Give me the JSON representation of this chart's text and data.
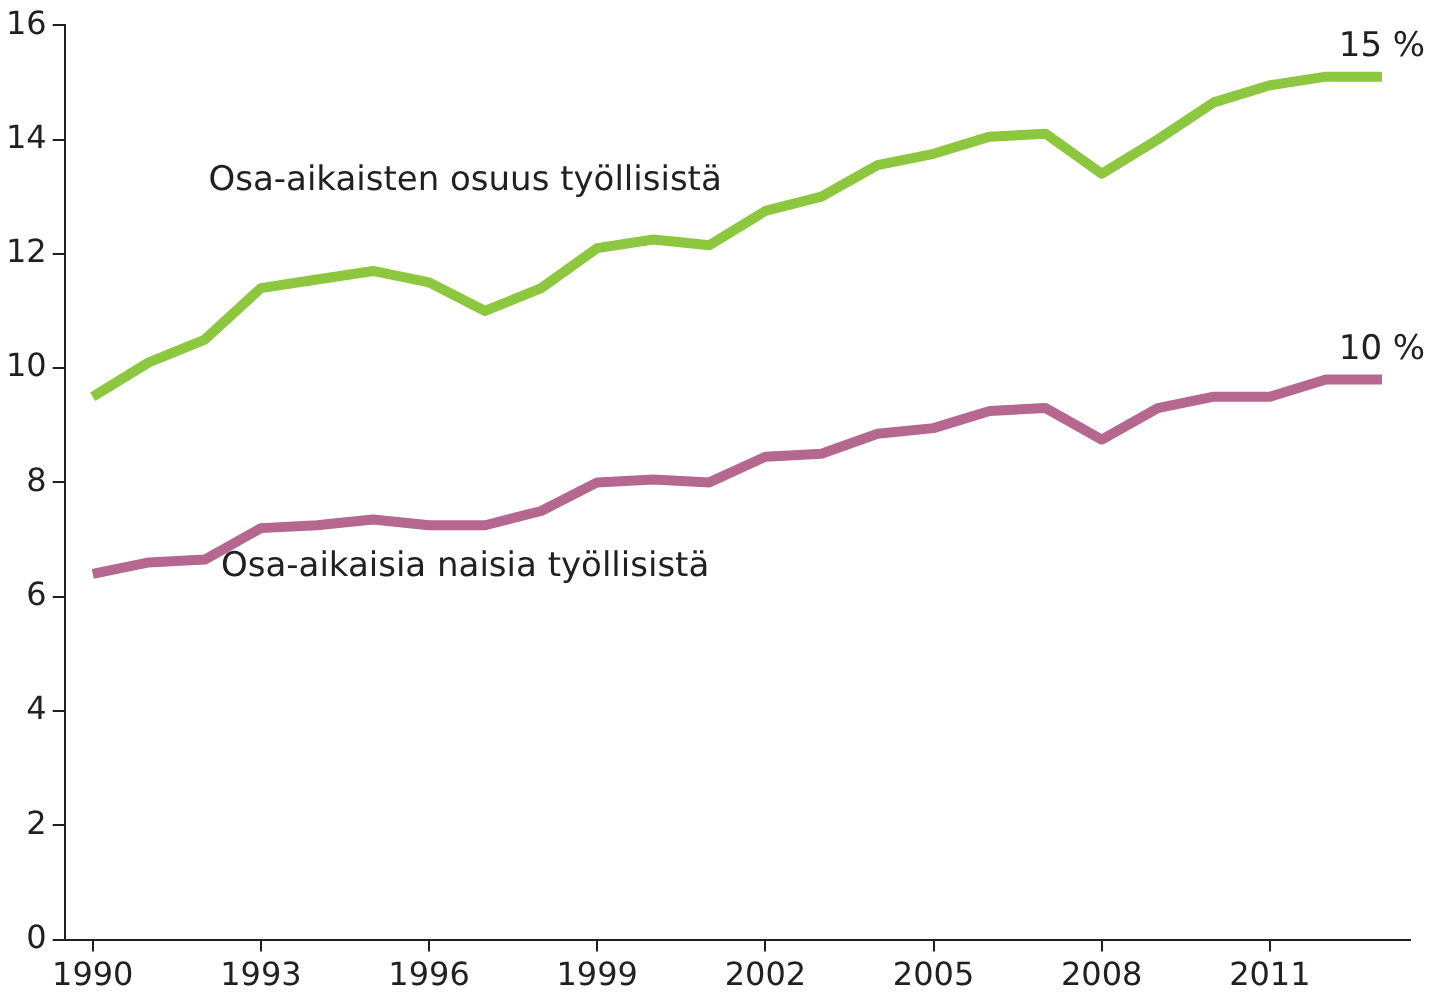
{
  "chart_data": {
    "type": "line",
    "x": [
      1990,
      1991,
      1992,
      1993,
      1994,
      1995,
      1996,
      1997,
      1998,
      1999,
      2000,
      2001,
      2002,
      2003,
      2004,
      2005,
      2006,
      2007,
      2008,
      2009,
      2010,
      2011,
      2012,
      2013
    ],
    "series": [
      {
        "name": "Osa-aikaisten osuus työllisistä",
        "color": "#8dc63f",
        "values": [
          9.5,
          10.1,
          10.5,
          11.4,
          11.55,
          11.7,
          11.5,
          11.0,
          11.4,
          12.1,
          12.25,
          12.15,
          12.75,
          13.0,
          13.55,
          13.75,
          14.05,
          14.1,
          13.4,
          14.0,
          14.65,
          14.95,
          15.1,
          15.1
        ]
      },
      {
        "name": "Osa-aikaisia naisia työllisistä",
        "color": "#b5678f",
        "values": [
          6.4,
          6.6,
          6.65,
          7.2,
          7.25,
          7.35,
          7.25,
          7.25,
          7.5,
          8.0,
          8.05,
          8.0,
          8.45,
          8.5,
          8.85,
          8.95,
          9.25,
          9.3,
          8.75,
          9.3,
          9.5,
          9.5,
          9.8,
          9.8
        ]
      }
    ],
    "xlim": [
      1989.5,
      2013.5
    ],
    "xticks": [
      1990,
      1993,
      1996,
      1999,
      2002,
      2005,
      2008,
      2011
    ],
    "ylim": [
      0,
      16
    ],
    "yticks": [
      0,
      2,
      4,
      6,
      8,
      10,
      12,
      14,
      16
    ],
    "annotations": [
      {
        "text": "15 %",
        "x": 2013,
        "y": 15.1
      },
      {
        "text": "10 %",
        "x": 2013,
        "y": 9.8
      }
    ],
    "grid": false,
    "legend": false,
    "marker": "none",
    "line_style": "solid"
  }
}
